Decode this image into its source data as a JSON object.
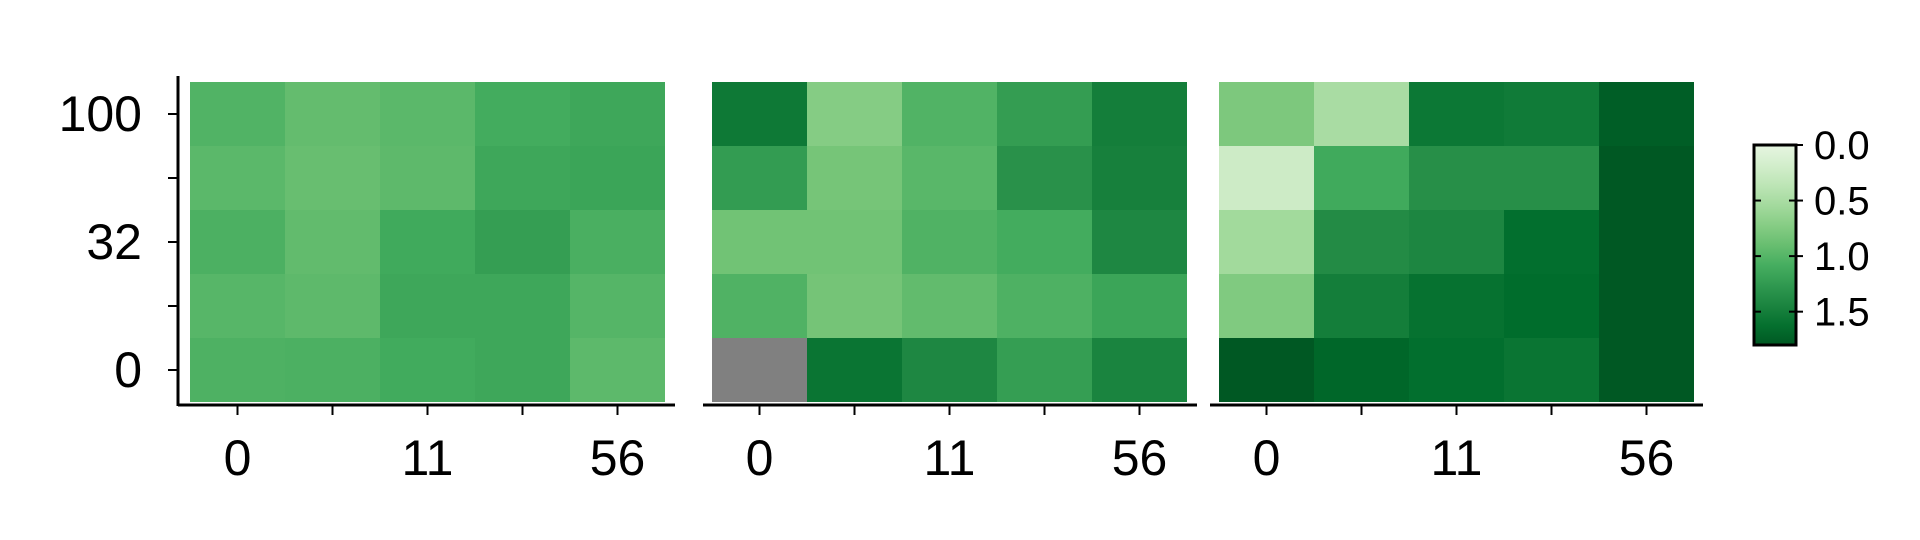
{
  "chart_data": {
    "type": "heatmap",
    "x_ticks": [
      "0",
      "11",
      "56"
    ],
    "y_ticks": [
      "100",
      "32",
      "0"
    ],
    "rows_top_to_bottom": [
      "100",
      "",
      "32",
      "",
      "0"
    ],
    "colorbar": {
      "ticks": [
        "0.0",
        "0.5",
        "1.0",
        "1.5"
      ],
      "range": [
        0.0,
        1.8
      ],
      "reversed": true,
      "colormap": "Greens",
      "color_low_value": "#0b6a31",
      "color_high_value": "#f1f8ee"
    },
    "missing_color": "#808080",
    "panels": [
      {
        "matrix": [
          [
            1.02,
            0.92,
            0.97,
            1.1,
            1.14
          ],
          [
            0.97,
            0.9,
            0.95,
            1.14,
            1.16
          ],
          [
            1.05,
            0.93,
            1.12,
            1.22,
            1.06
          ],
          [
            0.99,
            0.95,
            1.14,
            1.14,
            1.0
          ],
          [
            1.04,
            1.05,
            1.11,
            1.14,
            0.96
          ]
        ]
      },
      {
        "matrix": [
          [
            1.55,
            0.73,
            1.02,
            1.23,
            1.5
          ],
          [
            1.24,
            0.82,
            0.98,
            1.33,
            1.48
          ],
          [
            0.85,
            0.85,
            1.03,
            1.1,
            1.42
          ],
          [
            1.03,
            0.83,
            0.93,
            1.04,
            1.16
          ],
          [
            null,
            1.58,
            1.42,
            1.22,
            1.45
          ]
        ]
      },
      {
        "matrix": [
          [
            0.78,
            0.5,
            1.56,
            1.53,
            1.76
          ],
          [
            0.23,
            1.12,
            1.35,
            1.35,
            1.8
          ],
          [
            0.55,
            1.38,
            1.43,
            1.64,
            1.8
          ],
          [
            0.76,
            1.5,
            1.61,
            1.66,
            1.8
          ],
          [
            1.8,
            1.7,
            1.64,
            1.58,
            1.8
          ]
        ]
      }
    ]
  }
}
